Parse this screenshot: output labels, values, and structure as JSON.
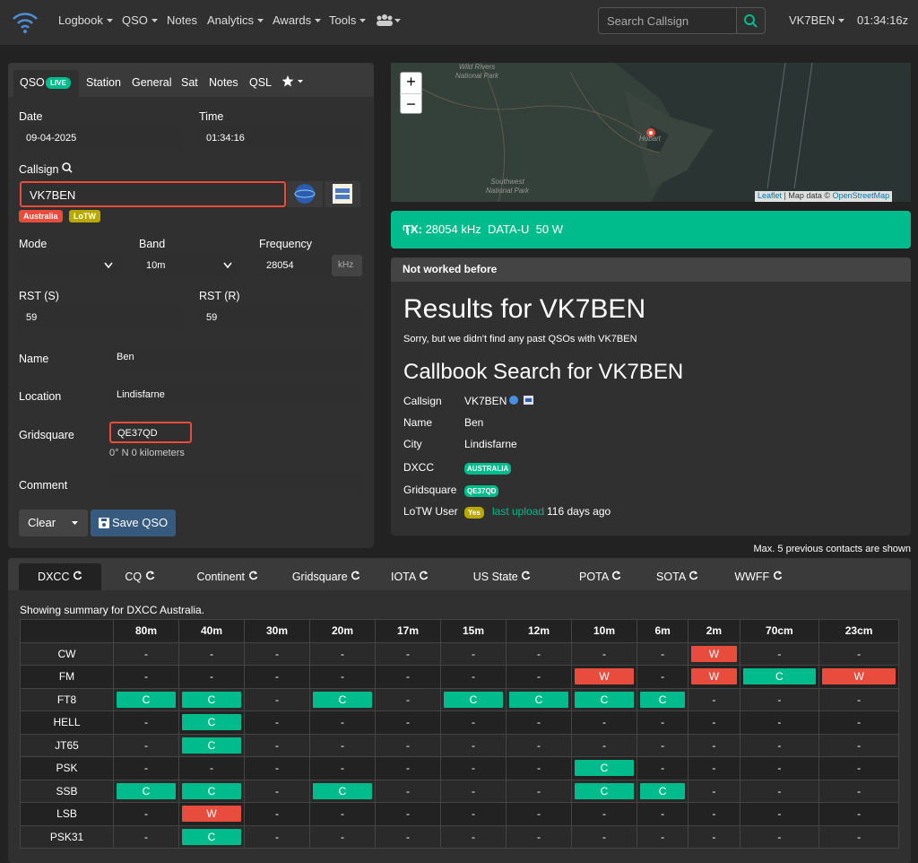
{
  "navbar": {
    "items": [
      "Logbook",
      "QSO",
      "Notes",
      "Analytics",
      "Awards",
      "Tools"
    ],
    "search_placeholder": "Search Callsign",
    "user": "VK7BEN",
    "clock": "01:34:16z"
  },
  "qso_panel": {
    "tabs": [
      "QSO",
      "Station",
      "General",
      "Sat",
      "Notes",
      "QSL"
    ],
    "live_badge": "LIVE",
    "date_label": "Date",
    "date": "09-04-2025",
    "time_label": "Time",
    "time": "01:34:16",
    "callsign_label": "Callsign",
    "callsign": "VK7BEN",
    "badges": [
      "Australia",
      "LoTW"
    ],
    "mode_label": "Mode",
    "band_label": "Band",
    "band": "10m",
    "frequency_label": "Frequency",
    "frequency": "28054",
    "frequency_unit": "kHz",
    "rst_s_label": "RST (S)",
    "rst_s": "59",
    "rst_r_label": "RST (R)",
    "rst_r": "59",
    "name_label": "Name",
    "name": "Ben",
    "location_label": "Location",
    "location": "Lindisfarne",
    "gridsquare_label": "Gridsquare",
    "gridsquare": "QE37QD",
    "distance": "0° N 0 kilometers",
    "comment_label": "Comment",
    "clear_button": "Clear",
    "save_button": "Save QSO"
  },
  "map": {
    "zoom_in": "+",
    "zoom_out": "−",
    "places": [
      "Wild Rivers National Park",
      "Hobart",
      "Southwest National Park"
    ],
    "attribution": [
      "Leaflet",
      "| Map data ©",
      "OpenStreetMap"
    ]
  },
  "tx_status": {
    "label": "TX:",
    "text": "28054 kHz  DATA-U  50 W"
  },
  "results": {
    "header": "Not worked before",
    "title": "Results for VK7BEN",
    "message": "Sorry, but we didn't find any past QSOs with VK7BEN",
    "callbook_title": "Callbook Search for VK7BEN",
    "rows": [
      {
        "label": "Callsign",
        "value": "VK7BEN"
      },
      {
        "label": "Name",
        "value": "Ben"
      },
      {
        "label": "City",
        "value": "Lindisfarne"
      },
      {
        "label": "DXCC",
        "value": "AUSTRALIA"
      },
      {
        "label": "Gridsquare",
        "value": "QE37QD"
      },
      {
        "label": "LoTW User",
        "value": "Yes"
      }
    ],
    "lotw_link": "last upload",
    "lotw_age": "116 days ago"
  },
  "note": "Max. 5 previous contacts are shown",
  "summary": {
    "tabs": [
      "DXCC",
      "CQ",
      "Continent",
      "Gridsquare",
      "IOTA",
      "US State",
      "POTA",
      "SOTA",
      "WWFF"
    ],
    "caption": "Showing summary for DXCC Australia.",
    "columns": [
      "80m",
      "40m",
      "30m",
      "20m",
      "17m",
      "15m",
      "12m",
      "10m",
      "6m",
      "2m",
      "70cm",
      "23cm"
    ],
    "rows": [
      [
        "CW",
        "-",
        "-",
        "-",
        "-",
        "-",
        "-",
        "-",
        "-",
        "-",
        "W",
        "-",
        "-"
      ],
      [
        "FM",
        "-",
        "-",
        "-",
        "-",
        "-",
        "-",
        "-",
        "W",
        "-",
        "W",
        "C",
        "W"
      ],
      [
        "FT8",
        "C",
        "C",
        "-",
        "C",
        "-",
        "C",
        "C",
        "C",
        "C",
        "-",
        "-",
        "-"
      ],
      [
        "HELL",
        "-",
        "C",
        "-",
        "-",
        "-",
        "-",
        "-",
        "-",
        "-",
        "-",
        "-",
        "-"
      ],
      [
        "JT65",
        "-",
        "C",
        "-",
        "-",
        "-",
        "-",
        "-",
        "-",
        "-",
        "-",
        "-",
        "-"
      ],
      [
        "PSK",
        "-",
        "-",
        "-",
        "-",
        "-",
        "-",
        "-",
        "C",
        "-",
        "-",
        "-",
        "-"
      ],
      [
        "SSB",
        "C",
        "C",
        "-",
        "C",
        "-",
        "-",
        "-",
        "C",
        "C",
        "-",
        "-",
        "-"
      ],
      [
        "LSB",
        "-",
        "W",
        "-",
        "-",
        "-",
        "-",
        "-",
        "-",
        "-",
        "-",
        "-",
        "-"
      ],
      [
        "PSK31",
        "-",
        "C",
        "-",
        "-",
        "-",
        "-",
        "-",
        "-",
        "-",
        "-",
        "-",
        "-"
      ]
    ]
  }
}
